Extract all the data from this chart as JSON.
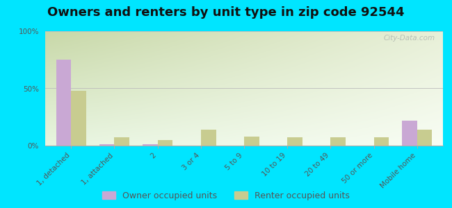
{
  "title": "Owners and renters by unit type in zip code 92544",
  "categories": [
    "1, detached",
    "1, attached",
    "2",
    "3 or 4",
    "5 to 9",
    "10 to 19",
    "20 to 49",
    "50 or more",
    "Mobile home"
  ],
  "owner_values": [
    75,
    1,
    1,
    0,
    0,
    0,
    0,
    0,
    22
  ],
  "renter_values": [
    48,
    7,
    5,
    14,
    8,
    7,
    7,
    7,
    14
  ],
  "owner_color": "#c9a8d4",
  "renter_color": "#c8cc90",
  "outer_bg": "#00e5ff",
  "ylim": [
    0,
    100
  ],
  "yticks": [
    0,
    50,
    100
  ],
  "ytick_labels": [
    "0%",
    "50%",
    "100%"
  ],
  "watermark": "City-Data.com",
  "legend_owner": "Owner occupied units",
  "legend_renter": "Renter occupied units",
  "title_fontsize": 13,
  "tick_fontsize": 7.5,
  "legend_fontsize": 9
}
